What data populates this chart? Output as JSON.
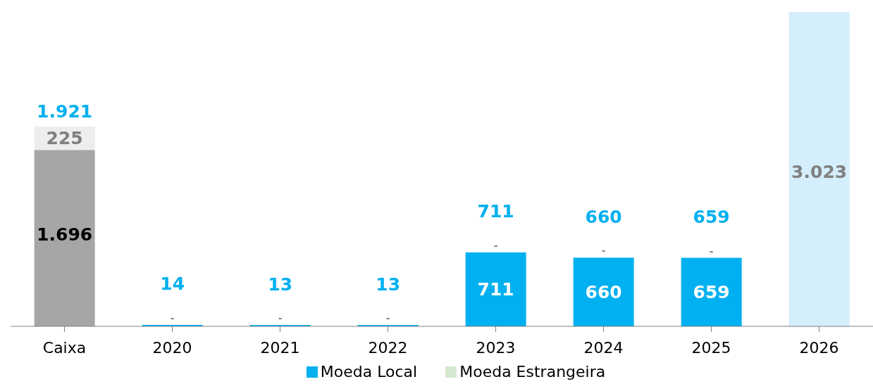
{
  "chart_data": {
    "type": "bar",
    "stacked": true,
    "categories": [
      "Caixa",
      "2020",
      "2021",
      "2022",
      "2023",
      "2024",
      "2025",
      "2026"
    ],
    "series": [
      {
        "color": "#a6a6a6",
        "values": [
          1696,
          null,
          null,
          null,
          null,
          null,
          null,
          null
        ],
        "value_labels": [
          "1.696",
          null,
          null,
          null,
          null,
          null,
          null,
          null
        ]
      },
      {
        "name": "Moeda Local",
        "color": "#00b0f0",
        "values": [
          null,
          14,
          13,
          13,
          711,
          660,
          659,
          null
        ],
        "value_labels": [
          null,
          null,
          null,
          null,
          "711",
          "660",
          "659",
          null
        ]
      },
      {
        "name": "Moeda Estrangeira",
        "color": "#d5ead0",
        "values": [
          null,
          0,
          0,
          0,
          0,
          0,
          0,
          null
        ],
        "value_labels": [
          null,
          "-",
          "-",
          "-",
          "-",
          "-",
          "-",
          null
        ]
      },
      {
        "color": "#ededed",
        "values": [
          225,
          null,
          null,
          null,
          null,
          null,
          null,
          null
        ],
        "value_labels": [
          "225",
          null,
          null,
          null,
          null,
          null,
          null,
          null
        ]
      },
      {
        "color": "#d5eefc",
        "values": [
          null,
          null,
          null,
          null,
          null,
          null,
          null,
          3023
        ],
        "value_labels": [
          null,
          null,
          null,
          null,
          null,
          null,
          null,
          "3.023"
        ]
      }
    ],
    "totals": [
      "1.921",
      "14",
      "13",
      "13",
      "711",
      "660",
      "659",
      null
    ],
    "legend": "bottom"
  }
}
